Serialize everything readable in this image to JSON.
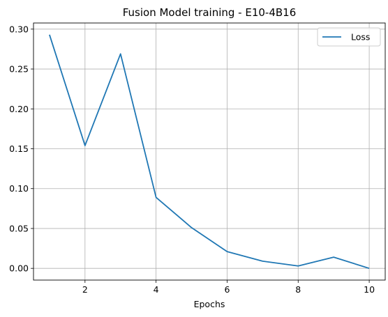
{
  "chart_data": {
    "type": "line",
    "title": "Fusion Model training - E10-4B16",
    "xlabel": "Epochs",
    "ylabel": "",
    "xlim": [
      0.55,
      10.45
    ],
    "ylim": [
      -0.0147,
      0.3077
    ],
    "xticks": [
      2,
      4,
      6,
      8,
      10
    ],
    "yticks": [
      0.0,
      0.05,
      0.1,
      0.15,
      0.2,
      0.25,
      0.3
    ],
    "ytick_labels": [
      "0.00",
      "0.05",
      "0.10",
      "0.15",
      "0.20",
      "0.25",
      "0.30"
    ],
    "grid": true,
    "legend_position": "top-right",
    "series": [
      {
        "name": "Loss",
        "color": "#1f77b4",
        "x": [
          1,
          2,
          3,
          4,
          5,
          6,
          7,
          8,
          9,
          10
        ],
        "values": [
          0.293,
          0.154,
          0.269,
          0.089,
          0.051,
          0.021,
          0.009,
          0.003,
          0.014,
          0.0
        ]
      }
    ]
  }
}
